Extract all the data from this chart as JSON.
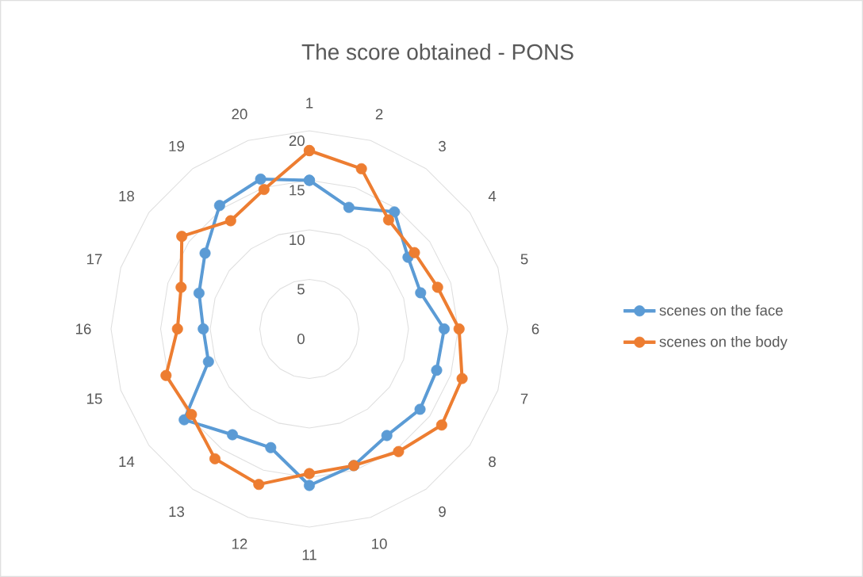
{
  "chart_data": {
    "type": "radar",
    "title": "The score obtained - PONS",
    "categories": [
      "1",
      "2",
      "3",
      "4",
      "5",
      "6",
      "7",
      "8",
      "9",
      "10",
      "11",
      "12",
      "13",
      "14",
      "15",
      "16",
      "17",
      "18",
      "19",
      "20"
    ],
    "series": [
      {
        "name": "scenes on the face",
        "color": "#5b9bd5",
        "values": [
          15,
          12.9,
          14.6,
          12.3,
          11.8,
          13.6,
          13.5,
          13.8,
          13.3,
          14.5,
          15.8,
          12.6,
          13.2,
          15.6,
          10.7,
          10.7,
          11.7,
          13,
          15.4,
          15.9
        ]
      },
      {
        "name": "scenes on the body",
        "color": "#ed7d31",
        "values": [
          18,
          17,
          13.6,
          13.1,
          13.6,
          15.1,
          16.2,
          16.5,
          15.3,
          14.5,
          14.6,
          16.5,
          16.2,
          14.7,
          15.2,
          13.3,
          13.6,
          15.9,
          13.5,
          14.8
        ]
      }
    ],
    "ylim": [
      0,
      20
    ],
    "yticks": [
      0,
      5,
      10,
      15,
      20
    ],
    "grid": true,
    "legend": "right",
    "marker": "circle"
  }
}
